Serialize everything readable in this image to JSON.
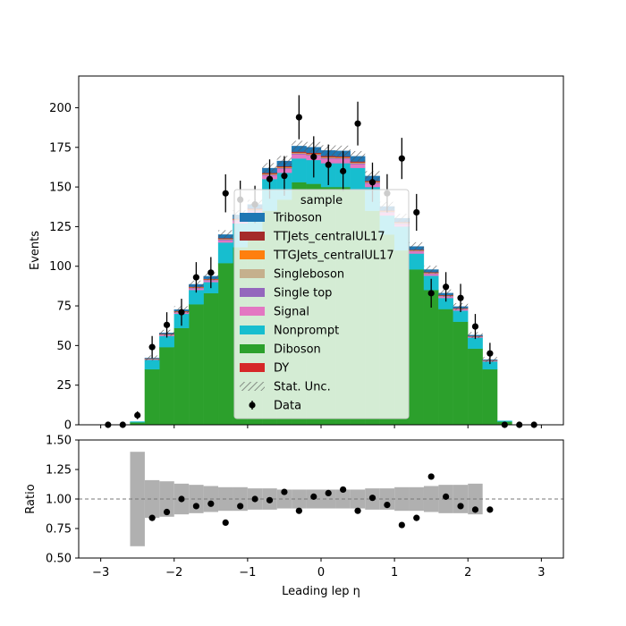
{
  "chart_data": {
    "type": "bar",
    "stacked": true,
    "bin_width": 0.2,
    "x_centers": [
      -2.9,
      -2.7,
      -2.5,
      -2.3,
      -2.1,
      -1.9,
      -1.7,
      -1.5,
      -1.3,
      -1.1,
      -0.9,
      -0.7,
      -0.5,
      -0.3,
      -0.1,
      0.1,
      0.3,
      0.5,
      0.7,
      0.9,
      1.1,
      1.3,
      1.5,
      1.7,
      1.9,
      2.1,
      2.3,
      2.5,
      2.7,
      2.9
    ],
    "main_panel": {
      "ylabel": "Events",
      "ylim": [
        0,
        220
      ],
      "yticks": [
        0,
        25,
        50,
        75,
        100,
        125,
        150,
        175,
        200
      ],
      "series": [
        {
          "name": "DY",
          "color": "#d62728",
          "values": [
            0,
            0,
            0,
            0,
            0,
            0,
            0,
            0,
            0,
            0,
            0,
            0,
            0,
            0,
            0,
            0,
            0,
            0,
            0,
            0,
            0,
            0,
            0,
            0,
            0,
            0,
            0,
            0,
            0,
            0
          ]
        },
        {
          "name": "Diboson",
          "color": "#2ca02c",
          "values": [
            0,
            0,
            1.5,
            35,
            49,
            61,
            76,
            83,
            102,
            112,
            118,
            135,
            142,
            153,
            152,
            150,
            150,
            148,
            135,
            120,
            110,
            98,
            85,
            73,
            65,
            48,
            35,
            2,
            0,
            0
          ]
        },
        {
          "name": "Nonprompt",
          "color": "#17becf",
          "values": [
            0,
            0,
            0.5,
            6,
            7,
            9,
            9,
            7,
            13,
            15,
            15,
            20,
            17,
            15,
            15,
            15,
            15,
            14,
            15,
            12,
            15,
            10,
            9,
            7,
            7,
            7,
            5,
            0.5,
            0,
            0
          ]
        },
        {
          "name": "Signal",
          "color": "#e377c2",
          "values": [
            0,
            0,
            0,
            0.3,
            0.6,
            0.8,
            1,
            1,
            1.4,
            1.6,
            1.8,
            2.2,
            2.4,
            2.6,
            2.8,
            2.8,
            2.6,
            2.4,
            2.2,
            1.8,
            1.6,
            1.4,
            1.2,
            0.9,
            0.8,
            0.5,
            0.3,
            0,
            0,
            0
          ]
        },
        {
          "name": "Single top",
          "color": "#9467bd",
          "values": [
            0,
            0,
            0,
            0.1,
            0.2,
            0.2,
            0.3,
            0.3,
            0.4,
            0.4,
            0.5,
            0.5,
            0.5,
            0.5,
            0.5,
            0.5,
            0.5,
            0.5,
            0.5,
            0.4,
            0.4,
            0.3,
            0.3,
            0.2,
            0.2,
            0.1,
            0.1,
            0,
            0,
            0
          ]
        },
        {
          "name": "Singleboson",
          "color": "#c5b08d",
          "values": [
            0,
            0,
            0,
            0.1,
            0.2,
            0.2,
            0.2,
            0.2,
            0.3,
            0.3,
            0.3,
            0.3,
            0.3,
            0.3,
            0.3,
            0.3,
            0.3,
            0.3,
            0.3,
            0.3,
            0.3,
            0.2,
            0.2,
            0.2,
            0.2,
            0.1,
            0.1,
            0,
            0,
            0
          ]
        },
        {
          "name": "TTGJets_centralUL17",
          "color": "#ff7f0e",
          "values": [
            0,
            0,
            0,
            0.1,
            0.1,
            0.2,
            0.2,
            0.2,
            0.2,
            0.2,
            0.3,
            0.3,
            0.3,
            0.3,
            0.3,
            0.3,
            0.3,
            0.3,
            0.3,
            0.2,
            0.2,
            0.2,
            0.2,
            0.2,
            0.1,
            0.1,
            0.1,
            0,
            0,
            0
          ]
        },
        {
          "name": "TTJets_centralUL17",
          "color": "#a52a2a",
          "values": [
            0,
            0,
            0,
            0.2,
            0.3,
            0.3,
            0.4,
            0.4,
            0.5,
            0.5,
            0.6,
            0.6,
            0.6,
            0.6,
            0.7,
            0.7,
            0.6,
            0.6,
            0.6,
            0.5,
            0.5,
            0.4,
            0.4,
            0.3,
            0.3,
            0.2,
            0.2,
            0,
            0,
            0
          ]
        },
        {
          "name": "Triboson",
          "color": "#1f77b4",
          "values": [
            0,
            0,
            0,
            0.3,
            0.6,
            1,
            1.5,
            1.6,
            2.2,
            2.5,
            2.5,
            3,
            3.3,
            3.5,
            3.5,
            3.5,
            3.5,
            3.3,
            3,
            2.5,
            2.3,
            2,
            1.6,
            1.3,
            1,
            0.6,
            0.3,
            0,
            0,
            0
          ]
        }
      ],
      "data_points": {
        "name": "Data",
        "y": [
          0,
          0,
          6,
          49,
          63,
          71,
          93,
          96,
          146,
          142,
          139,
          155,
          157,
          194,
          169,
          164,
          160,
          190,
          153,
          146,
          168,
          134,
          83,
          87,
          80,
          62,
          45,
          0,
          0,
          0
        ],
        "yerr": [
          0,
          0,
          2.5,
          7,
          8,
          8.5,
          9.6,
          9.8,
          12,
          12,
          11.8,
          12.4,
          12.5,
          13.9,
          13,
          12.8,
          12.6,
          13.8,
          12.4,
          12.1,
          13,
          11.6,
          9.1,
          9.3,
          8.9,
          7.9,
          6.7,
          0,
          0,
          0
        ]
      },
      "legend": {
        "title": "sample",
        "location": "center",
        "entries": [
          "Triboson",
          "TTJets_centralUL17",
          "TTGJets_centralUL17",
          "Singleboson",
          "Single top",
          "Signal",
          "Nonprompt",
          "Diboson",
          "DY",
          "Stat. Unc.",
          "Data"
        ]
      }
    },
    "ratio_panel": {
      "ylabel": "Ratio",
      "xlabel": "Leading lep η",
      "ylim": [
        0.5,
        1.5
      ],
      "yticks": [
        "0.50",
        "0.75",
        "1.00",
        "1.25",
        "1.50"
      ],
      "xticks": [
        "−3",
        "−2",
        "−1",
        "0",
        "1",
        "2",
        "3"
      ],
      "xtick_values": [
        -3,
        -2,
        -1,
        0,
        1,
        2,
        3
      ],
      "reference_line": 1.0,
      "unc_band_half_width": [
        0,
        0,
        0.4,
        0.16,
        0.15,
        0.13,
        0.12,
        0.11,
        0.1,
        0.1,
        0.09,
        0.09,
        0.08,
        0.08,
        0.08,
        0.08,
        0.08,
        0.08,
        0.09,
        0.09,
        0.1,
        0.1,
        0.11,
        0.12,
        0.12,
        0.13,
        0,
        0,
        0,
        0
      ],
      "ratio_values": [
        null,
        null,
        null,
        0.84,
        0.89,
        1.0,
        0.94,
        0.96,
        0.8,
        0.94,
        1.0,
        0.99,
        1.06,
        0.9,
        1.02,
        1.05,
        1.08,
        0.9,
        1.01,
        0.95,
        0.78,
        0.84,
        1.19,
        1.02,
        0.94,
        0.91,
        0.91,
        null,
        null,
        null
      ]
    },
    "x_range": [
      -3.3,
      3.3
    ]
  }
}
